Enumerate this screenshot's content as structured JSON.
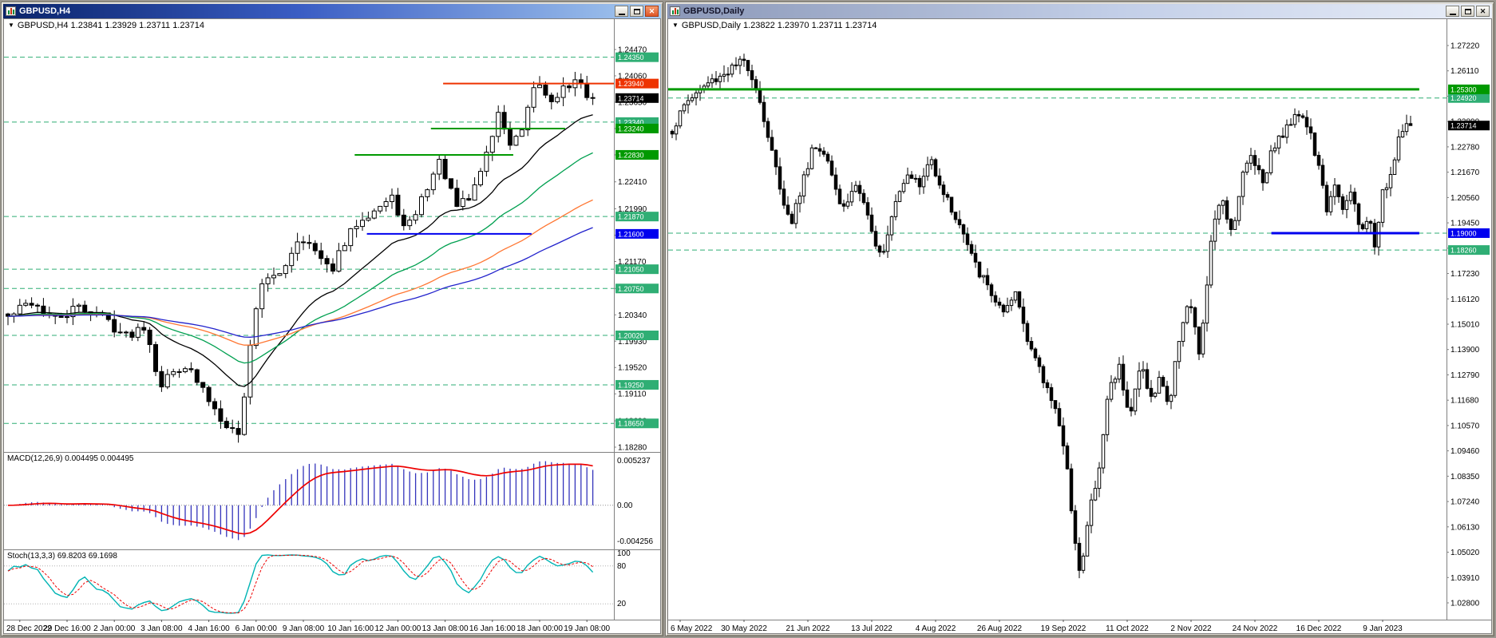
{
  "app": {
    "background_color": "#9c9891",
    "titlebar_active_color": "#0a246a"
  },
  "windows": {
    "left": {
      "title": "GBPUSD,H4",
      "active": true,
      "quote_line": "GBPUSD,H4 1.23841 1.23929 1.23711 1.23714",
      "controls": {
        "minimize": "minimize",
        "restore": "restore",
        "close": "close"
      }
    },
    "right": {
      "title": "GBPUSD,Daily",
      "active": false,
      "quote_line": "GBPUSD,Daily 1.23822 1.23970 1.23711 1.23714",
      "controls": {
        "minimize": "minimize",
        "restore": "restore",
        "close": "close"
      }
    }
  },
  "indicators": {
    "macd": {
      "label": "MACD(12,26,9) 0.004495 0.004495",
      "scale_max": "0.005237",
      "scale_zero": "0.00",
      "scale_min": "-0.004256",
      "values": {
        "macd": 0.004495,
        "signal": 0.004495
      }
    },
    "stoch": {
      "label": "Stoch(13,3,3) 69.8203 69.1698",
      "scale": [
        "100",
        "80",
        "20"
      ],
      "values": {
        "k": 69.8203,
        "d": 69.1698
      }
    }
  },
  "chart_data": [
    {
      "id": "h4",
      "type": "candlestick",
      "symbol": "GBPUSD",
      "timeframe": "H4",
      "ohlc_quote": {
        "open": 1.23841,
        "high": 1.23929,
        "low": 1.23711,
        "close": 1.23714
      },
      "price_axis_labels": [
        "1.24470",
        "1.24060",
        "1.23650",
        "1.23240",
        "1.22830",
        "1.22410",
        "1.21990",
        "1.21580",
        "1.21170",
        "1.20750",
        "1.20340",
        "1.19930",
        "1.19520",
        "1.19110",
        "1.18690",
        "1.18280"
      ],
      "time_axis_labels": [
        "28 Dec 2022",
        "29 Dec 16:00",
        "2 Jan 00:00",
        "3 Jan 08:00",
        "4 Jan 16:00",
        "6 Jan 00:00",
        "9 Jan 08:00",
        "10 Jan 16:00",
        "12 Jan 00:00",
        "13 Jan 08:00",
        "16 Jan 16:00",
        "18 Jan 00:00",
        "19 Jan 08:00"
      ],
      "n_bars": 100,
      "seed": 42,
      "volatility": 0.0022,
      "last_close": 1.23714,
      "current_price_label": "1.23714",
      "keypoints": [
        [
          0,
          1.203
        ],
        [
          0.04,
          1.2055
        ],
        [
          0.08,
          1.2025
        ],
        [
          0.12,
          1.2045
        ],
        [
          0.16,
          1.2035
        ],
        [
          0.2,
          1.2
        ],
        [
          0.235,
          1.202
        ],
        [
          0.26,
          1.1925
        ],
        [
          0.3,
          1.196
        ],
        [
          0.33,
          1.192
        ],
        [
          0.36,
          1.188
        ],
        [
          0.395,
          1.1845
        ],
        [
          0.415,
          1.199
        ],
        [
          0.43,
          1.2085
        ],
        [
          0.46,
          1.209
        ],
        [
          0.5,
          1.216
        ],
        [
          0.53,
          1.2125
        ],
        [
          0.55,
          1.21
        ],
        [
          0.58,
          1.215
        ],
        [
          0.6,
          1.2185
        ],
        [
          0.66,
          1.2215
        ],
        [
          0.68,
          1.216
        ],
        [
          0.7,
          1.22
        ],
        [
          0.72,
          1.224
        ],
        [
          0.74,
          1.2275
        ],
        [
          0.765,
          1.22
        ],
        [
          0.79,
          1.2215
        ],
        [
          0.82,
          1.229
        ],
        [
          0.84,
          1.235
        ],
        [
          0.86,
          1.2295
        ],
        [
          0.88,
          1.232
        ],
        [
          0.905,
          1.24
        ],
        [
          0.925,
          1.2365
        ],
        [
          0.945,
          1.2385
        ],
        [
          0.97,
          1.2395
        ],
        [
          1,
          1.23714
        ]
      ],
      "levels": [
        {
          "price": 1.2435,
          "color": "#2fae74",
          "label": "1.24350"
        },
        {
          "price": 1.2334,
          "color": "#2fae74",
          "label": "1.23340"
        },
        {
          "price": 1.2187,
          "color": "#2fae74",
          "label": "1.21870"
        },
        {
          "price": 1.2105,
          "color": "#2fae74",
          "label": "1.21050"
        },
        {
          "price": 1.2075,
          "color": "#2fae74",
          "label": "1.20750"
        },
        {
          "price": 1.2002,
          "color": "#2fae74",
          "label": "1.20020"
        },
        {
          "price": 1.1925,
          "color": "#2fae74",
          "label": "1.19250"
        },
        {
          "price": 1.1865,
          "color": "#2fae74",
          "label": "1.18650"
        }
      ],
      "segments": [
        {
          "price": 1.2394,
          "x1": 0.72,
          "x2": 1.0,
          "color": "#ee3300",
          "width": 2,
          "label": "1.23940"
        },
        {
          "price": 1.2324,
          "x1": 0.7,
          "x2": 0.92,
          "color": "#009900",
          "width": 2,
          "label": "1.23240"
        },
        {
          "price": 1.2283,
          "x1": 0.575,
          "x2": 0.835,
          "color": "#009900",
          "width": 2,
          "label": "1.22830"
        },
        {
          "price": 1.216,
          "x1": 0.595,
          "x2": 0.865,
          "color": "#0000ee",
          "width": 2,
          "label": "1.21600"
        }
      ],
      "moving_averages": [
        {
          "period": 20,
          "color": "#000000"
        },
        {
          "period": 40,
          "color": "#00a050"
        },
        {
          "period": 75,
          "color": "#ff7733"
        },
        {
          "period": 110,
          "color": "#2222cc"
        }
      ],
      "colors": {
        "up": "#ffffff",
        "down": "#000000",
        "outline": "#000000",
        "macd_hist": "#3333bb",
        "macd_signal": "#ee0000",
        "stoch_k": "#00b4b4",
        "stoch_d": "#ee0000"
      }
    },
    {
      "id": "daily",
      "type": "candlestick",
      "symbol": "GBPUSD",
      "timeframe": "Daily",
      "ohlc_quote": {
        "open": 1.23822,
        "high": 1.2397,
        "low": 1.23711,
        "close": 1.23714
      },
      "price_axis_labels": [
        "1.27220",
        "1.26110",
        "1.25000",
        "1.23890",
        "1.22780",
        "1.21670",
        "1.20560",
        "1.19450",
        "1.18340",
        "1.17230",
        "1.16120",
        "1.15010",
        "1.13900",
        "1.12790",
        "1.11680",
        "1.10570",
        "1.09460",
        "1.08350",
        "1.07240",
        "1.06130",
        "1.05020",
        "1.03910",
        "1.02800"
      ],
      "time_axis_labels": [
        "6 May 2022",
        "30 May 2022",
        "21 Jun 2022",
        "13 Jul 2022",
        "4 Aug 2022",
        "26 Aug 2022",
        "19 Sep 2022",
        "11 Oct 2022",
        "2 Nov 2022",
        "24 Nov 2022",
        "16 Dec 2022",
        "9 Jan 2023"
      ],
      "n_bars": 186,
      "seed": 1337,
      "volatility": 0.0062,
      "last_close": 1.23714,
      "current_price_label": "1.23714",
      "keypoints": [
        [
          0,
          1.235
        ],
        [
          0.02,
          1.248
        ],
        [
          0.05,
          1.256
        ],
        [
          0.08,
          1.262
        ],
        [
          0.1,
          1.2655
        ],
        [
          0.115,
          1.253
        ],
        [
          0.13,
          1.232
        ],
        [
          0.145,
          1.212
        ],
        [
          0.16,
          1.1934
        ],
        [
          0.175,
          1.21
        ],
        [
          0.19,
          1.228
        ],
        [
          0.21,
          1.225
        ],
        [
          0.23,
          1.2
        ],
        [
          0.25,
          1.212
        ],
        [
          0.27,
          1.19
        ],
        [
          0.285,
          1.181
        ],
        [
          0.3,
          1.203
        ],
        [
          0.32,
          1.218
        ],
        [
          0.335,
          1.21
        ],
        [
          0.35,
          1.223
        ],
        [
          0.37,
          1.206
        ],
        [
          0.39,
          1.193
        ],
        [
          0.41,
          1.176
        ],
        [
          0.43,
          1.165
        ],
        [
          0.45,
          1.153
        ],
        [
          0.465,
          1.164
        ],
        [
          0.48,
          1.146
        ],
        [
          0.5,
          1.127
        ],
        [
          0.52,
          1.114
        ],
        [
          0.535,
          1.085
        ],
        [
          0.553,
          1.038
        ],
        [
          0.565,
          1.069
        ],
        [
          0.578,
          1.085
        ],
        [
          0.59,
          1.12
        ],
        [
          0.605,
          1.132
        ],
        [
          0.62,
          1.11
        ],
        [
          0.635,
          1.133
        ],
        [
          0.65,
          1.116
        ],
        [
          0.662,
          1.128
        ],
        [
          0.673,
          1.113
        ],
        [
          0.688,
          1.148
        ],
        [
          0.7,
          1.161
        ],
        [
          0.715,
          1.135
        ],
        [
          0.73,
          1.188
        ],
        [
          0.745,
          1.206
        ],
        [
          0.758,
          1.19
        ],
        [
          0.772,
          1.215
        ],
        [
          0.785,
          1.225
        ],
        [
          0.8,
          1.213
        ],
        [
          0.815,
          1.229
        ],
        [
          0.83,
          1.234
        ],
        [
          0.845,
          1.2446
        ],
        [
          0.862,
          1.236
        ],
        [
          0.878,
          1.215
        ],
        [
          0.886,
          1.2
        ],
        [
          0.895,
          1.212
        ],
        [
          0.908,
          1.1993
        ],
        [
          0.919,
          1.208
        ],
        [
          0.935,
          1.19
        ],
        [
          0.946,
          1.196
        ],
        [
          0.951,
          1.1841
        ],
        [
          0.962,
          1.209
        ],
        [
          0.973,
          1.215
        ],
        [
          0.984,
          1.23
        ],
        [
          0.992,
          1.238
        ],
        [
          1,
          1.23714
        ]
      ],
      "levels": [
        {
          "price": 1.2492,
          "color": "#2fae74",
          "label": "1.24920"
        },
        {
          "price": 1.19,
          "color": "#2fae74",
          "label": null
        },
        {
          "price": 1.1826,
          "color": "#2fae74",
          "label": "1.18260"
        }
      ],
      "segments": [
        {
          "price": 1.253,
          "x1": 0.0,
          "x2": 0.965,
          "color": "#009900",
          "width": 3,
          "label": "1.25300"
        },
        {
          "price": 1.19,
          "x1": 0.775,
          "x2": 0.965,
          "color": "#0000ee",
          "width": 3,
          "label": "1.19000"
        }
      ],
      "moving_averages": [],
      "colors": {
        "up": "#ffffff",
        "down": "#000000",
        "outline": "#000000"
      }
    }
  ]
}
